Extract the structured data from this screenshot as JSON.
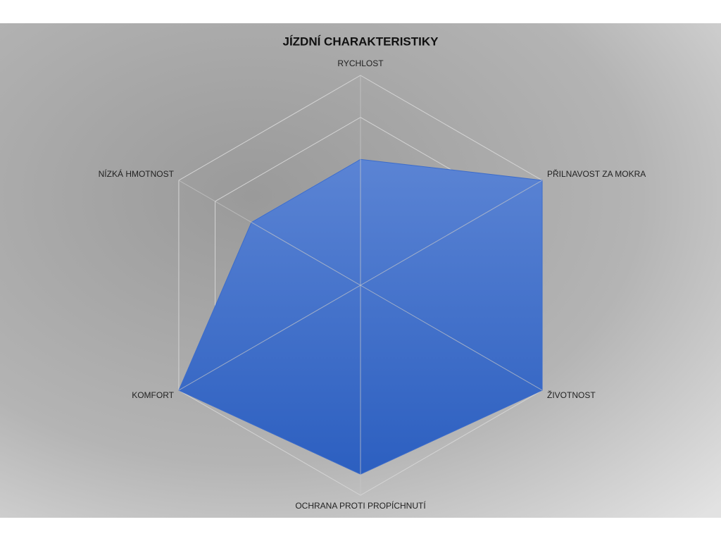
{
  "chart_data": {
    "type": "radar",
    "title": "JÍZDNÍ CHARAKTERISTIKY",
    "categories": [
      "RYCHLOST",
      "PŘILNAVOST ZA MOKRA",
      "ŽIVOTNOST",
      "OCHRANA PROTI PROPÍCHNUTÍ",
      "KOMFORT",
      "NÍZKÁ HMOTNOST"
    ],
    "values": [
      3,
      5,
      5,
      4.5,
      5,
      3
    ],
    "color": "#3d6cc9",
    "rlim": [
      0,
      5
    ],
    "rticks": [
      1,
      2,
      3,
      4,
      5
    ],
    "grid": true
  }
}
